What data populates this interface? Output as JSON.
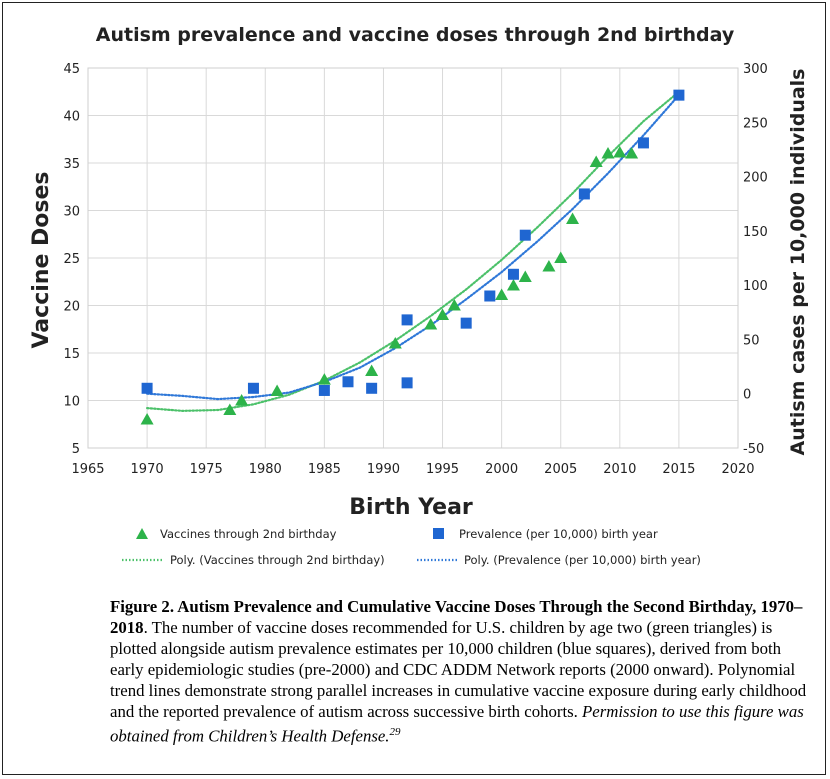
{
  "chart_data": {
    "type": "scatter",
    "title": "Autism prevalence and vaccine doses through 2nd birthday",
    "xlabel": "Birth Year",
    "ylabel_left": "Vaccine Doses",
    "ylabel_right": "Autism cases per 10,000 individuals",
    "xlim": [
      1965,
      2020
    ],
    "ylim_left": [
      5,
      45
    ],
    "ylim_right": [
      -50,
      300
    ],
    "x_ticks": [
      "1965",
      "1970",
      "1975",
      "1980",
      "1985",
      "1990",
      "1995",
      "2000",
      "2005",
      "2010",
      "2015",
      "2020"
    ],
    "y_left_ticks": [
      "5",
      "10",
      "15",
      "20",
      "25",
      "30",
      "35",
      "40",
      "45"
    ],
    "y_right_ticks": [
      "-50",
      "0",
      "50",
      "100",
      "150",
      "200",
      "250",
      "300"
    ],
    "grid": true,
    "series": [
      {
        "name": "Vaccines through 2nd birthday",
        "axis": "left",
        "marker": "triangle",
        "color": "#2db34a",
        "points": [
          [
            1970,
            8
          ],
          [
            1977,
            9
          ],
          [
            1978,
            10
          ],
          [
            1981,
            11
          ],
          [
            1985,
            12.2
          ],
          [
            1989,
            13.1
          ],
          [
            1991,
            16
          ],
          [
            1994,
            18
          ],
          [
            1995,
            19
          ],
          [
            1996,
            20
          ],
          [
            2000,
            21.1
          ],
          [
            2001,
            22.1
          ],
          [
            2002,
            23
          ],
          [
            2004,
            24.1
          ],
          [
            2005,
            25
          ],
          [
            2006,
            29.1
          ],
          [
            2008,
            35.1
          ],
          [
            2009,
            36
          ],
          [
            2010,
            36.1
          ],
          [
            2011,
            36
          ]
        ]
      },
      {
        "name": "Prevalence (per 10,000) birth year",
        "axis": "right",
        "marker": "square",
        "color": "#1f66d1",
        "points": [
          [
            1970,
            5
          ],
          [
            1979,
            5
          ],
          [
            1985,
            3
          ],
          [
            1987,
            11
          ],
          [
            1989,
            5
          ],
          [
            1992,
            10
          ],
          [
            1992,
            68
          ],
          [
            1997,
            65
          ],
          [
            1999,
            90
          ],
          [
            2001,
            110
          ],
          [
            2002,
            146
          ],
          [
            2007,
            184
          ],
          [
            2012,
            231
          ],
          [
            2015,
            275
          ]
        ]
      }
    ],
    "trendlines": [
      {
        "name": "Poly. (Vaccines through 2nd birthday)",
        "axis": "left",
        "color": "#4cc16a",
        "points": [
          [
            1970,
            9.2
          ],
          [
            1973,
            8.9
          ],
          [
            1976,
            9.0
          ],
          [
            1979,
            9.6
          ],
          [
            1982,
            10.6
          ],
          [
            1985,
            12.1
          ],
          [
            1988,
            14.0
          ],
          [
            1991,
            16.3
          ],
          [
            1994,
            18.9
          ],
          [
            1997,
            21.7
          ],
          [
            2000,
            24.8
          ],
          [
            2003,
            28.2
          ],
          [
            2006,
            31.8
          ],
          [
            2009,
            35.7
          ],
          [
            2012,
            39.4
          ],
          [
            2015,
            42.5
          ]
        ]
      },
      {
        "name": "Poly. (Prevalence (per 10,000) birth year)",
        "axis": "right",
        "color": "#2f78d8",
        "points": [
          [
            1970,
            0
          ],
          [
            1973,
            -2
          ],
          [
            1976,
            -5
          ],
          [
            1979,
            -3
          ],
          [
            1982,
            1
          ],
          [
            1985,
            11
          ],
          [
            1988,
            24
          ],
          [
            1991,
            42
          ],
          [
            1994,
            63
          ],
          [
            1997,
            87
          ],
          [
            2000,
            112
          ],
          [
            2003,
            140
          ],
          [
            2006,
            170
          ],
          [
            2009,
            203
          ],
          [
            2012,
            238
          ],
          [
            2015,
            275
          ]
        ]
      }
    ],
    "legend": {
      "placement": "bottom",
      "items": [
        "Vaccines through 2nd birthday",
        "Prevalence (per 10,000) birth year",
        "Poly. (Vaccines through 2nd birthday)",
        "Poly. (Prevalence (per 10,000) birth year)"
      ]
    }
  },
  "caption": {
    "label": "Figure 2. Autism Prevalence and Cumulative Vaccine Doses Through the Second Birthday, 1970–2018",
    "body": ". The number of vaccine doses recommended for U.S. children by age two (green triangles) is plotted alongside autism prevalence estimates per 10,000 children (blue squares), derived from both early epidemiologic studies (pre-2000) and CDC ADDM Network reports (2000 onward). Polynomial trend lines demonstrate strong parallel increases in cumulative vaccine exposure during early childhood and the reported prevalence of autism across successive birth cohorts. ",
    "permission": "Permission to use this figure was obtained from Children’s Health Defense.",
    "footnote": "29"
  }
}
